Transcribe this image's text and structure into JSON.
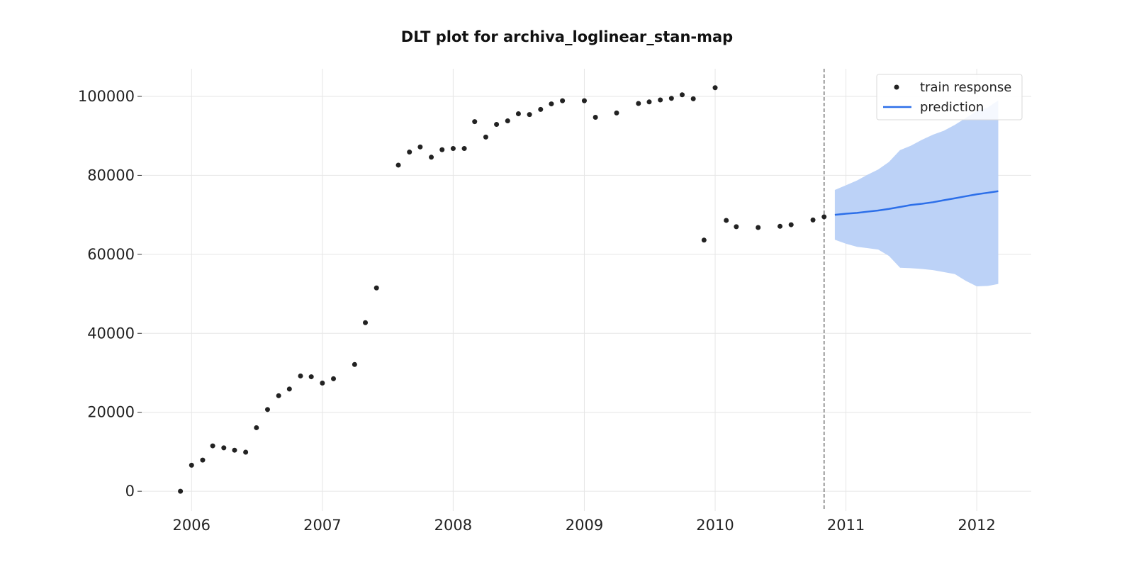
{
  "chart_data": {
    "type": "scatter",
    "title": "DLT plot for archiva_loglinear_stan-map",
    "xlabel": "",
    "ylabel": "",
    "x_axis": {
      "type": "date",
      "range": [
        "2005-08-15",
        "2012-06-01"
      ],
      "ticks": [
        {
          "value": "2006-01-01",
          "label": "2006"
        },
        {
          "value": "2007-01-01",
          "label": "2007"
        },
        {
          "value": "2008-01-01",
          "label": "2008"
        },
        {
          "value": "2009-01-01",
          "label": "2009"
        },
        {
          "value": "2010-01-01",
          "label": "2010"
        },
        {
          "value": "2011-01-01",
          "label": "2011"
        },
        {
          "value": "2012-01-01",
          "label": "2012"
        }
      ]
    },
    "y_axis": {
      "range": [
        -5000,
        107000
      ],
      "ticks": [
        {
          "value": 0,
          "label": "0"
        },
        {
          "value": 20000,
          "label": "20000"
        },
        {
          "value": 40000,
          "label": "40000"
        },
        {
          "value": 60000,
          "label": "60000"
        },
        {
          "value": 80000,
          "label": "80000"
        },
        {
          "value": 100000,
          "label": "100000"
        }
      ]
    },
    "grid": true,
    "legend": {
      "placement": "top-right",
      "entries": [
        {
          "label": "train response",
          "marker": "dot",
          "color": "#222222"
        },
        {
          "label": "prediction",
          "marker": "line",
          "color": "#2c6fe9"
        }
      ]
    },
    "train_cutoff": "2010-11-01",
    "series": [
      {
        "name": "train response",
        "kind": "scatter",
        "color": "#222222",
        "points": [
          [
            "2005-12-01",
            0
          ],
          [
            "2006-01-01",
            6600
          ],
          [
            "2006-02-01",
            7900
          ],
          [
            "2006-03-01",
            11500
          ],
          [
            "2006-04-01",
            11000
          ],
          [
            "2006-05-01",
            10400
          ],
          [
            "2006-06-01",
            9900
          ],
          [
            "2006-07-01",
            16100
          ],
          [
            "2006-08-01",
            20700
          ],
          [
            "2006-09-01",
            24200
          ],
          [
            "2006-10-01",
            25900
          ],
          [
            "2006-11-01",
            29200
          ],
          [
            "2006-12-01",
            29000
          ],
          [
            "2007-01-01",
            27400
          ],
          [
            "2007-02-01",
            28500
          ],
          [
            "2007-04-01",
            32100
          ],
          [
            "2007-05-01",
            42700
          ],
          [
            "2007-06-01",
            51500
          ],
          [
            "2007-08-01",
            82600
          ],
          [
            "2007-09-01",
            85900
          ],
          [
            "2007-10-01",
            87200
          ],
          [
            "2007-11-01",
            84600
          ],
          [
            "2007-12-01",
            86500
          ],
          [
            "2008-01-01",
            86800
          ],
          [
            "2008-02-01",
            86800
          ],
          [
            "2008-03-01",
            93600
          ],
          [
            "2008-04-01",
            89700
          ],
          [
            "2008-05-01",
            92900
          ],
          [
            "2008-06-01",
            93800
          ],
          [
            "2008-07-01",
            95600
          ],
          [
            "2008-08-01",
            95400
          ],
          [
            "2008-09-01",
            96700
          ],
          [
            "2008-10-01",
            98100
          ],
          [
            "2008-11-01",
            98900
          ],
          [
            "2009-01-01",
            98900
          ],
          [
            "2009-02-01",
            94700
          ],
          [
            "2009-04-01",
            95800
          ],
          [
            "2009-06-01",
            98200
          ],
          [
            "2009-07-01",
            98600
          ],
          [
            "2009-08-01",
            99100
          ],
          [
            "2009-09-01",
            99500
          ],
          [
            "2009-10-01",
            100400
          ],
          [
            "2009-11-01",
            99400
          ],
          [
            "2009-12-01",
            63600
          ],
          [
            "2010-01-01",
            102200
          ],
          [
            "2010-02-01",
            68600
          ],
          [
            "2010-03-01",
            67000
          ],
          [
            "2010-05-01",
            66800
          ],
          [
            "2010-07-01",
            67100
          ],
          [
            "2010-08-01",
            67500
          ],
          [
            "2010-10-01",
            68700
          ],
          [
            "2010-11-01",
            69500
          ]
        ]
      },
      {
        "name": "prediction",
        "kind": "line",
        "color": "#2c6fe9",
        "band_color": "#bcd2f7",
        "points": [
          [
            "2010-12-01",
            70000,
            63700,
            76300
          ],
          [
            "2011-01-01",
            70300,
            62700,
            77500
          ],
          [
            "2011-02-01",
            70500,
            61900,
            78700
          ],
          [
            "2011-03-01",
            70800,
            61600,
            80100
          ],
          [
            "2011-04-01",
            71100,
            61200,
            81500
          ],
          [
            "2011-05-01",
            71500,
            59600,
            83400
          ],
          [
            "2011-06-01",
            72000,
            56600,
            86400
          ],
          [
            "2011-07-01",
            72500,
            56500,
            87500
          ],
          [
            "2011-08-01",
            72800,
            56300,
            89000
          ],
          [
            "2011-09-01",
            73200,
            56000,
            90300
          ],
          [
            "2011-10-01",
            73700,
            55500,
            91300
          ],
          [
            "2011-11-01",
            74200,
            55000,
            92800
          ],
          [
            "2011-12-01",
            74700,
            53300,
            94500
          ],
          [
            "2012-01-01",
            75200,
            51900,
            96300
          ],
          [
            "2012-02-01",
            75600,
            52000,
            97200
          ],
          [
            "2012-03-01",
            76000,
            52500,
            99000
          ]
        ]
      }
    ]
  }
}
